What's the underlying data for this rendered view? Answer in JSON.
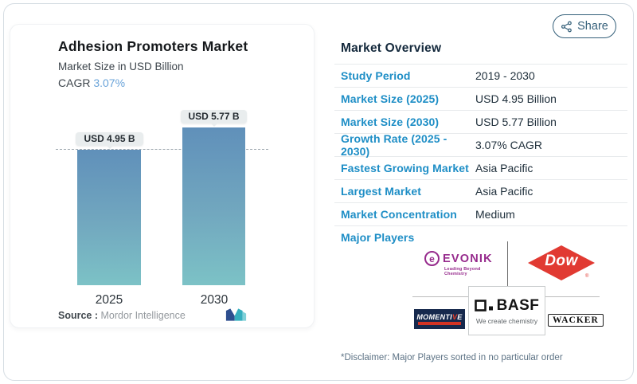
{
  "header": {
    "share_label": "Share",
    "share_icon": "share-nodes-icon"
  },
  "chart": {
    "title": "Adhesion Promoters Market",
    "subtitle": "Market Size in USD Billion",
    "cagr_label": "CAGR",
    "cagr_value": "3.07%",
    "source_label": "Source :",
    "source_value": "Mordor Intelligence",
    "logo": "mordor-intelligence-logo"
  },
  "chart_data": {
    "type": "bar",
    "categories": [
      "2025",
      "2030"
    ],
    "values": [
      4.95,
      5.77
    ],
    "bar_labels": [
      "USD 4.95 B",
      "USD 5.77 B"
    ],
    "title": "Adhesion Promoters Market",
    "subtitle": "Market Size in USD Billion",
    "cagr": "3.07%",
    "reference_line": 4.95,
    "xlabel": "",
    "ylabel": "USD Billion",
    "ylim": [
      0,
      6.2
    ],
    "grid": false,
    "bar_gradient": [
      "#6090ba",
      "#7cc2c6"
    ]
  },
  "overview": {
    "heading": "Market Overview",
    "rows": [
      {
        "label": "Study Period",
        "value": "2019 - 2030"
      },
      {
        "label": "Market Size (2025)",
        "value": "USD 4.95 Billion"
      },
      {
        "label": "Market Size (2030)",
        "value": "USD 5.77 Billion"
      },
      {
        "label": "Growth Rate (2025 - 2030)",
        "value": "3.07% CAGR"
      },
      {
        "label": "Fastest Growing Market",
        "value": "Asia Pacific"
      },
      {
        "label": "Largest Market",
        "value": "Asia Pacific"
      },
      {
        "label": "Market Concentration",
        "value": "Medium"
      }
    ],
    "major_players_label": "Major Players"
  },
  "players": {
    "evonik": {
      "name": "EVONIK",
      "tagline": "Leading Beyond Chemistry",
      "color": "#962a8c"
    },
    "dow": {
      "name": "Dow",
      "reg": "®",
      "color": "#e13a32"
    },
    "basf": {
      "name": "BASF",
      "tagline": "We create chemistry",
      "color": "#141414"
    },
    "momentive": {
      "name": "MOMENTIVE",
      "name_prefix": "MOMENTI",
      "name_accent": "V",
      "name_suffix": "E",
      "color": "#16294d"
    },
    "wacker": {
      "name": "WACKER",
      "color": "#111111"
    }
  },
  "footer": {
    "disclaimer": "*Disclaimer: Major Players sorted in no particular order"
  },
  "colors": {
    "label_blue": "#1e8ec6",
    "cagr_blue": "#69a3d9",
    "share_teal": "#35607a",
    "value_dark": "#20303c"
  }
}
